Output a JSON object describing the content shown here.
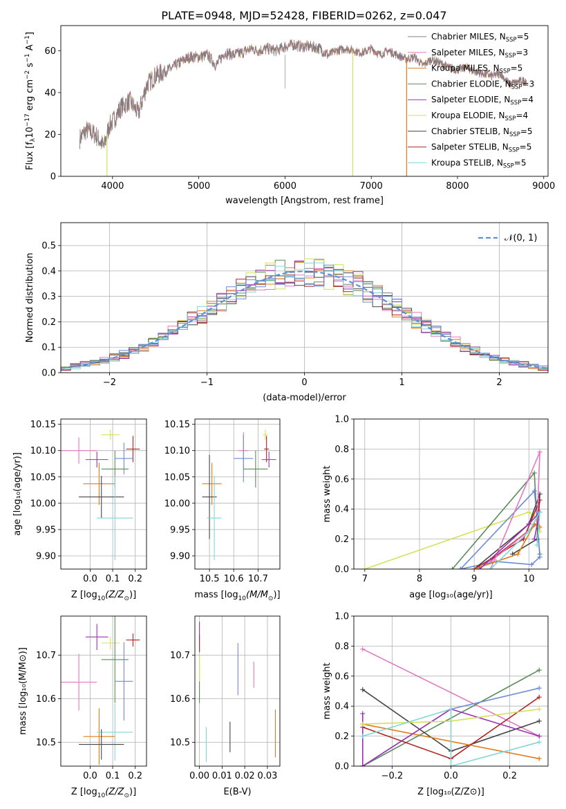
{
  "title": "PLATE=0948, MJD=52428, FIBERID=0262, z=0.047",
  "colors": {
    "Chabrier MILES": "#7f7f7f",
    "Salpeter MILES": "#e377c2",
    "Kroupa MILES": "#e07b1a",
    "Chabrier ELODIE": "#5a8a5a",
    "Salpeter ELODIE": "#9b30b0",
    "Kroupa ELODIE": "#d4e157",
    "Chabrier STELIB": "#444444",
    "Salpeter STELIB": "#b22222",
    "Kroupa STELIB": "#7fd6d6",
    "Blue": "#6a8bd8",
    "gaussian": "#5b8fd9"
  },
  "chart_data": [
    {
      "id": "spectrum",
      "type": "line",
      "xlabel": "wavelength [Angstrom, rest frame]",
      "ylabel_main": "Flux [f",
      "ylabel_sub": "λ",
      "ylabel_rest": "10",
      "ylabel_exp": "−17",
      "ylabel_tail": " erg cm",
      "ylabel_exp2": "−2",
      "ylabel_tail2": " s",
      "ylabel_exp3": "−1",
      "ylabel_tail3": " A",
      "ylabel_exp4": "−1",
      "ylabel_end": "]",
      "xlim": [
        3400,
        9050
      ],
      "ylim": [
        0,
        72
      ],
      "xticks": [
        4000,
        5000,
        6000,
        7000,
        8000,
        9000
      ],
      "yticks": [
        0,
        20,
        40,
        60
      ],
      "legend": [
        {
          "label": "Chabrier MILES, N",
          "sub": "SSP",
          "val": "=5",
          "color": "#7f7f7f"
        },
        {
          "label": "Salpeter MILES, N",
          "sub": "SSP",
          "val": "=3",
          "color": "#e377c2"
        },
        {
          "label": "Kroupa MILES, N",
          "sub": "SSP",
          "val": "=5",
          "color": "#e07b1a"
        },
        {
          "label": "Chabrier ELODIE, N",
          "sub": "SSP",
          "val": "=3",
          "color": "#5a8a5a"
        },
        {
          "label": "Salpeter ELODIE, N",
          "sub": "SSP",
          "val": "=4",
          "color": "#9b30b0"
        },
        {
          "label": "Kroupa ELODIE, N",
          "sub": "SSP",
          "val": "=4",
          "color": "#d4e157"
        },
        {
          "label": "Chabrier STELIB, N",
          "sub": "SSP",
          "val": "=5",
          "color": "#444444"
        },
        {
          "label": "Salpeter STELIB, N",
          "sub": "SSP",
          "val": "=5",
          "color": "#b22222"
        },
        {
          "label": "Kroupa STELIB, N",
          "sub": "SSP",
          "val": "=5",
          "color": "#7fd6d6"
        }
      ],
      "continuum_knots": [
        [
          3620,
          18
        ],
        [
          3700,
          22
        ],
        [
          3800,
          20
        ],
        [
          3900,
          14
        ],
        [
          3960,
          24
        ],
        [
          4000,
          26
        ],
        [
          4100,
          33
        ],
        [
          4200,
          36
        ],
        [
          4300,
          30
        ],
        [
          4400,
          44
        ],
        [
          4500,
          48
        ],
        [
          4600,
          50
        ],
        [
          4700,
          52
        ],
        [
          4800,
          55
        ],
        [
          4900,
          57
        ],
        [
          5000,
          57
        ],
        [
          5100,
          58
        ],
        [
          5200,
          53
        ],
        [
          5300,
          59
        ],
        [
          5400,
          58
        ],
        [
          5500,
          59
        ],
        [
          5600,
          61
        ],
        [
          5700,
          60
        ],
        [
          5800,
          61
        ],
        [
          5900,
          60
        ],
        [
          6000,
          62
        ],
        [
          6100,
          63
        ],
        [
          6200,
          62
        ],
        [
          6300,
          62
        ],
        [
          6400,
          61
        ],
        [
          6500,
          58
        ],
        [
          6600,
          60
        ],
        [
          6700,
          61
        ],
        [
          6800,
          60
        ],
        [
          6900,
          59
        ],
        [
          7000,
          61
        ],
        [
          7100,
          58
        ],
        [
          7200,
          60
        ],
        [
          7300,
          58
        ],
        [
          7400,
          56
        ],
        [
          7500,
          57
        ],
        [
          7600,
          53
        ],
        [
          7700,
          56
        ],
        [
          7800,
          54
        ],
        [
          7900,
          52
        ],
        [
          8000,
          51
        ],
        [
          8100,
          52
        ],
        [
          8200,
          50
        ],
        [
          8300,
          49
        ],
        [
          8400,
          48
        ],
        [
          8500,
          49
        ],
        [
          8600,
          44
        ],
        [
          8700,
          45
        ],
        [
          8800,
          46
        ]
      ],
      "drops": [
        {
          "x": 3935,
          "color": "#d4e157"
        },
        {
          "x": 6785,
          "color": "#d4e157"
        },
        {
          "x": 7410,
          "color": "#e07b1a"
        }
      ]
    },
    {
      "id": "residuals",
      "type": "histogram",
      "xlabel": "(data-model)/error",
      "ylabel": "Normed distribution",
      "xlim": [
        -2.5,
        2.5
      ],
      "ylim": [
        0,
        0.59
      ],
      "xticks": [
        -2,
        -1,
        0,
        1,
        2
      ],
      "yticks": [
        0.0,
        0.1,
        0.2,
        0.3,
        0.4,
        0.5
      ],
      "legend_label": "𝒩(0, 1)",
      "bin_width": 0.1
    },
    {
      "id": "age_vs_Z",
      "type": "scatter",
      "xlabel": "Z [log",
      "xlabel_sub": "10",
      "xlabel_rest": "(Z/Z",
      "xlabel_sun": "⊙",
      "xlabel_end": ")]",
      "ylabel": "age  [log₁₀(age/yr)]",
      "xlim": [
        -0.13,
        0.25
      ],
      "ylim": [
        9.875,
        10.16
      ],
      "xticks": [
        0.0,
        0.1,
        0.2
      ],
      "yticks": [
        9.9,
        9.95,
        10.0,
        10.05,
        10.1,
        10.15
      ],
      "points": [
        {
          "x": -0.05,
          "y": 10.1,
          "xerr": 0.08,
          "yerr": 0.025,
          "color": "#e377c2"
        },
        {
          "x": 0.09,
          "y": 10.13,
          "xerr": 0.04,
          "yerr": 0.01,
          "color": "#d4e157"
        },
        {
          "x": 0.19,
          "y": 10.103,
          "xerr": 0.03,
          "yerr": 0.025,
          "color": "#b22222"
        },
        {
          "x": 0.03,
          "y": 10.083,
          "xerr": 0.05,
          "yerr": 0.015,
          "color": "#9b30b0"
        },
        {
          "x": 0.15,
          "y": 10.085,
          "xerr": 0.04,
          "yerr": 0.03,
          "color": "#6a8bd8"
        },
        {
          "x": 0.11,
          "y": 10.065,
          "xerr": 0.06,
          "yerr": 0.035,
          "color": "#5a8a5a"
        },
        {
          "x": 0.04,
          "y": 10.037,
          "xerr": 0.07,
          "yerr": 0.04,
          "color": "#e07b1a"
        },
        {
          "x": 0.05,
          "y": 10.012,
          "xerr": 0.1,
          "yerr": 0.04,
          "color": "#444444"
        },
        {
          "x": 0.11,
          "y": 9.972,
          "xerr": 0.08,
          "yerr": 0.08,
          "color": "#7fd6d6"
        }
      ]
    },
    {
      "id": "age_vs_mass",
      "type": "scatter",
      "xlabel": "mass [log",
      "xlabel_sub": "10",
      "xlabel_rest": "(M/M",
      "xlabel_sun": "⊙",
      "xlabel_end": ")]",
      "xlim": [
        10.44,
        10.79
      ],
      "ylim": [
        9.875,
        10.16
      ],
      "xticks": [
        10.5,
        10.6,
        10.7
      ],
      "yticks": [
        9.9,
        9.95,
        10.0,
        10.05,
        10.1,
        10.15
      ],
      "points": [
        {
          "x": 10.64,
          "y": 10.1,
          "xerr": 0.02,
          "yerr": 0.035,
          "color": "#e377c2"
        },
        {
          "x": 10.73,
          "y": 10.13,
          "xerr": 0.01,
          "yerr": 0.01,
          "color": "#d4e157"
        },
        {
          "x": 10.735,
          "y": 10.103,
          "xerr": 0.01,
          "yerr": 0.025,
          "color": "#b22222"
        },
        {
          "x": 10.745,
          "y": 10.083,
          "xerr": 0.03,
          "yerr": 0.015,
          "color": "#9b30b0"
        },
        {
          "x": 10.64,
          "y": 10.085,
          "xerr": 0.04,
          "yerr": 0.045,
          "color": "#6a8bd8"
        },
        {
          "x": 10.69,
          "y": 10.065,
          "xerr": 0.05,
          "yerr": 0.035,
          "color": "#5a8a5a"
        },
        {
          "x": 10.51,
          "y": 10.037,
          "xerr": 0.04,
          "yerr": 0.04,
          "color": "#e07b1a"
        },
        {
          "x": 10.5,
          "y": 10.012,
          "xerr": 0.03,
          "yerr": 0.08,
          "color": "#444444"
        },
        {
          "x": 10.52,
          "y": 9.972,
          "xerr": 0.03,
          "yerr": 0.08,
          "color": "#7fd6d6"
        }
      ]
    },
    {
      "id": "weight_vs_age",
      "type": "line",
      "xlabel": "age  [log₁₀(age/yr)]",
      "ylabel": "mass weight",
      "xlim": [
        6.8,
        10.35
      ],
      "ylim": [
        0,
        1.0
      ],
      "xticks": [
        7,
        8,
        9,
        10
      ],
      "yticks": [
        0.0,
        0.2,
        0.4,
        0.6,
        0.8,
        1.0
      ],
      "series": [
        {
          "color": "#d4e157",
          "points": [
            [
              7.0,
              0.0
            ],
            [
              10.0,
              0.38
            ],
            [
              10.1,
              0.35
            ],
            [
              10.15,
              0.3
            ],
            [
              10.2,
              0.25
            ]
          ]
        },
        {
          "color": "#5a8a5a",
          "points": [
            [
              8.6,
              0.0
            ],
            [
              10.1,
              0.64
            ],
            [
              10.15,
              0.3
            ],
            [
              10.2,
              0.1
            ]
          ]
        },
        {
          "color": "#6a8bd8",
          "points": [
            [
              8.75,
              0.0
            ],
            [
              10.1,
              0.52
            ],
            [
              10.15,
              0.35
            ],
            [
              10.2,
              0.08
            ],
            [
              10.05,
              0.03
            ],
            [
              9.4,
              0.05
            ],
            [
              8.75,
              0.0
            ]
          ]
        },
        {
          "color": "#444444",
          "points": [
            [
              9.0,
              0.0
            ],
            [
              10.0,
              0.3
            ],
            [
              10.2,
              0.5
            ],
            [
              10.15,
              0.2
            ],
            [
              9.7,
              0.1
            ]
          ]
        },
        {
          "color": "#b22222",
          "points": [
            [
              9.0,
              0.0
            ],
            [
              9.9,
              0.2
            ],
            [
              10.2,
              0.46
            ],
            [
              10.15,
              0.3
            ],
            [
              9.3,
              0.06
            ]
          ]
        },
        {
          "color": "#e377c2",
          "points": [
            [
              9.3,
              0.0
            ],
            [
              10.2,
              0.78
            ],
            [
              10.15,
              0.3
            ],
            [
              9.3,
              0.05
            ]
          ]
        },
        {
          "color": "#e07b1a",
          "points": [
            [
              9.0,
              0.0
            ],
            [
              9.8,
              0.1
            ],
            [
              10.1,
              0.3
            ],
            [
              10.2,
              0.28
            ]
          ]
        },
        {
          "color": "#9b30b0",
          "points": [
            [
              9.1,
              0.0
            ],
            [
              10.0,
              0.3
            ],
            [
              10.2,
              0.38
            ],
            [
              10.1,
              0.2
            ]
          ]
        },
        {
          "color": "#7fd6d6",
          "points": [
            [
              9.3,
              0.0
            ],
            [
              10.0,
              0.25
            ],
            [
              10.2,
              0.38
            ],
            [
              10.15,
              0.16
            ]
          ]
        }
      ]
    },
    {
      "id": "mass_vs_Z",
      "type": "scatter",
      "xlabel": "Z [log",
      "xlabel_sub": "10",
      "xlabel_rest": "(Z/Z",
      "xlabel_sun": "⊙",
      "xlabel_end": ")]",
      "ylabel": "mass [log₁₀(M/M⊙)]",
      "xlim": [
        -0.13,
        0.25
      ],
      "ylim": [
        10.445,
        10.79
      ],
      "xticks": [
        0.0,
        0.1,
        0.2
      ],
      "yticks": [
        10.5,
        10.6,
        10.7
      ],
      "points": [
        {
          "x": 0.03,
          "y": 10.742,
          "xerr": 0.05,
          "yerr": 0.03,
          "color": "#9b30b0"
        },
        {
          "x": 0.09,
          "y": 10.728,
          "xerr": 0.04,
          "yerr": 0.015,
          "color": "#d4e157"
        },
        {
          "x": 0.19,
          "y": 10.735,
          "xerr": 0.03,
          "yerr": 0.015,
          "color": "#b22222"
        },
        {
          "x": -0.05,
          "y": 10.638,
          "xerr": 0.08,
          "yerr": 0.065,
          "color": "#e377c2"
        },
        {
          "x": 0.11,
          "y": 10.69,
          "xerr": 0.06,
          "yerr": 0.1,
          "color": "#5a8a5a"
        },
        {
          "x": 0.15,
          "y": 10.64,
          "xerr": 0.04,
          "yerr": 0.09,
          "color": "#6a8bd8"
        },
        {
          "x": 0.04,
          "y": 10.513,
          "xerr": 0.07,
          "yerr": 0.065,
          "color": "#e07b1a"
        },
        {
          "x": 0.11,
          "y": 10.523,
          "xerr": 0.08,
          "yerr": 0.065,
          "color": "#7fd6d6"
        },
        {
          "x": 0.05,
          "y": 10.495,
          "xerr": 0.1,
          "yerr": 0.035,
          "color": "#444444"
        }
      ]
    },
    {
      "id": "mass_vs_EBV",
      "type": "scatter",
      "xlabel": "E(B-V)",
      "xlim": [
        -0.002,
        0.0355
      ],
      "ylim": [
        10.445,
        10.79
      ],
      "xticks": [
        0.0,
        0.01,
        0.02,
        0.03
      ],
      "yticks": [
        10.5,
        10.6,
        10.7
      ],
      "points": [
        {
          "x": 0.0,
          "y": 10.742,
          "xerr": 0.0,
          "yerr": 0.035,
          "color": "#9b30b0"
        },
        {
          "x": 0.0,
          "y": 10.728,
          "xerr": 0.0,
          "yerr": 0.02,
          "color": "#b22222"
        },
        {
          "x": 0.0,
          "y": 10.64,
          "xerr": 0.0,
          "yerr": 0.05,
          "color": "#5a8a5a"
        },
        {
          "x": 0.0,
          "y": 10.67,
          "xerr": 0.0,
          "yerr": 0.03,
          "color": "#d4e157"
        },
        {
          "x": 0.017,
          "y": 10.668,
          "xerr": 0.0,
          "yerr": 0.06,
          "color": "#6a8bd8"
        },
        {
          "x": 0.024,
          "y": 10.655,
          "xerr": 0.0,
          "yerr": 0.03,
          "color": "#e377c2"
        },
        {
          "x": 0.003,
          "y": 10.495,
          "xerr": 0.0,
          "yerr": 0.04,
          "color": "#7fd6d6"
        },
        {
          "x": 0.0135,
          "y": 10.512,
          "xerr": 0.0,
          "yerr": 0.035,
          "color": "#444444"
        },
        {
          "x": 0.0335,
          "y": 10.52,
          "xerr": 0.0,
          "yerr": 0.055,
          "color": "#e07b1a"
        }
      ]
    },
    {
      "id": "weight_vs_Z",
      "type": "line",
      "xlabel": "Z [log₁₀(Z/Z⊙)]",
      "ylabel": "mass weight",
      "xlim": [
        -0.33,
        0.33
      ],
      "ylim": [
        0,
        1.0
      ],
      "xticks": [
        -0.2,
        0.0,
        0.2
      ],
      "yticks": [
        0.0,
        0.2,
        0.4,
        0.6,
        0.8,
        1.0
      ],
      "series": [
        {
          "color": "#e377c2",
          "points": [
            [
              -0.3,
              0.78
            ],
            [
              0.3,
              0.2
            ]
          ]
        },
        {
          "color": "#5a8a5a",
          "points": [
            [
              -0.3,
              0.0
            ],
            [
              0.3,
              0.64
            ]
          ]
        },
        {
          "color": "#6a8bd8",
          "points": [
            [
              -0.3,
              0.0
            ],
            [
              0.0,
              0.38
            ],
            [
              0.3,
              0.52
            ]
          ]
        },
        {
          "color": "#444444",
          "points": [
            [
              -0.3,
              0.51
            ],
            [
              0.0,
              0.1
            ],
            [
              0.3,
              0.3
            ]
          ]
        },
        {
          "color": "#b22222",
          "points": [
            [
              -0.3,
              0.26
            ],
            [
              0.0,
              0.05
            ],
            [
              0.3,
              0.46
            ]
          ]
        },
        {
          "color": "#e07b1a",
          "points": [
            [
              -0.3,
              0.28
            ],
            [
              0.3,
              0.05
            ]
          ]
        },
        {
          "color": "#9b30b0",
          "points": [
            [
              -0.3,
              0.35
            ],
            [
              -0.3,
              0.0
            ],
            [
              0.0,
              0.38
            ],
            [
              0.3,
              0.2
            ]
          ]
        },
        {
          "color": "#d4e157",
          "points": [
            [
              -0.3,
              0.28
            ],
            [
              0.0,
              0.3
            ],
            [
              0.3,
              0.38
            ]
          ]
        },
        {
          "color": "#7fd6d6",
          "points": [
            [
              -0.3,
              0.2
            ],
            [
              0.0,
              0.38
            ],
            [
              0.0,
              0.0
            ],
            [
              0.3,
              0.16
            ]
          ]
        }
      ]
    }
  ]
}
